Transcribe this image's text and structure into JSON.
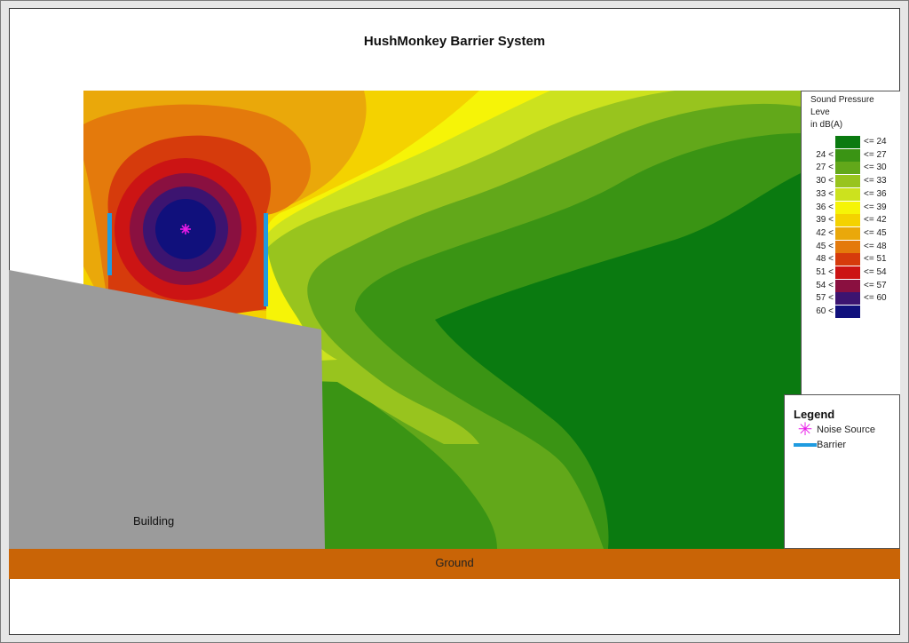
{
  "title": "HushMonkey Barrier System",
  "labels": {
    "building": "Building",
    "ground": "Ground"
  },
  "legend": {
    "title": "Legend",
    "noise_source": "Noise Source",
    "barrier": "Barrier"
  },
  "scale": {
    "title": "Sound Pressure\nLeve\nin dB(A)",
    "items": [
      {
        "left": "",
        "right": "<= 24",
        "color": "#0a7a10"
      },
      {
        "left": "24 <",
        "right": "<= 27",
        "color": "#3a9414"
      },
      {
        "left": "27 <",
        "right": "<= 30",
        "color": "#62a81a"
      },
      {
        "left": "30 <",
        "right": "<= 33",
        "color": "#98c41e"
      },
      {
        "left": "33 <",
        "right": "<= 36",
        "color": "#cce21e"
      },
      {
        "left": "36 <",
        "right": "<= 39",
        "color": "#f6f407"
      },
      {
        "left": "39 <",
        "right": "<= 42",
        "color": "#f4d200"
      },
      {
        "left": "42 <",
        "right": "<= 45",
        "color": "#eaa80a"
      },
      {
        "left": "45 <",
        "right": "<= 48",
        "color": "#e47a0c"
      },
      {
        "left": "48 <",
        "right": "<= 51",
        "color": "#d63b0c"
      },
      {
        "left": "51 <",
        "right": "<= 54",
        "color": "#cc1414"
      },
      {
        "left": "54 <",
        "right": "<= 57",
        "color": "#8a1040"
      },
      {
        "left": "57 <",
        "right": "<= 60",
        "color": "#3c1470"
      },
      {
        "left": "60 <",
        "right": "",
        "color": "#10107c"
      }
    ]
  },
  "colors": {
    "building": "#9b9b9b",
    "ground": "#c96406",
    "barrier": "#1f9be0",
    "noise_source": "#e81ae8"
  }
}
